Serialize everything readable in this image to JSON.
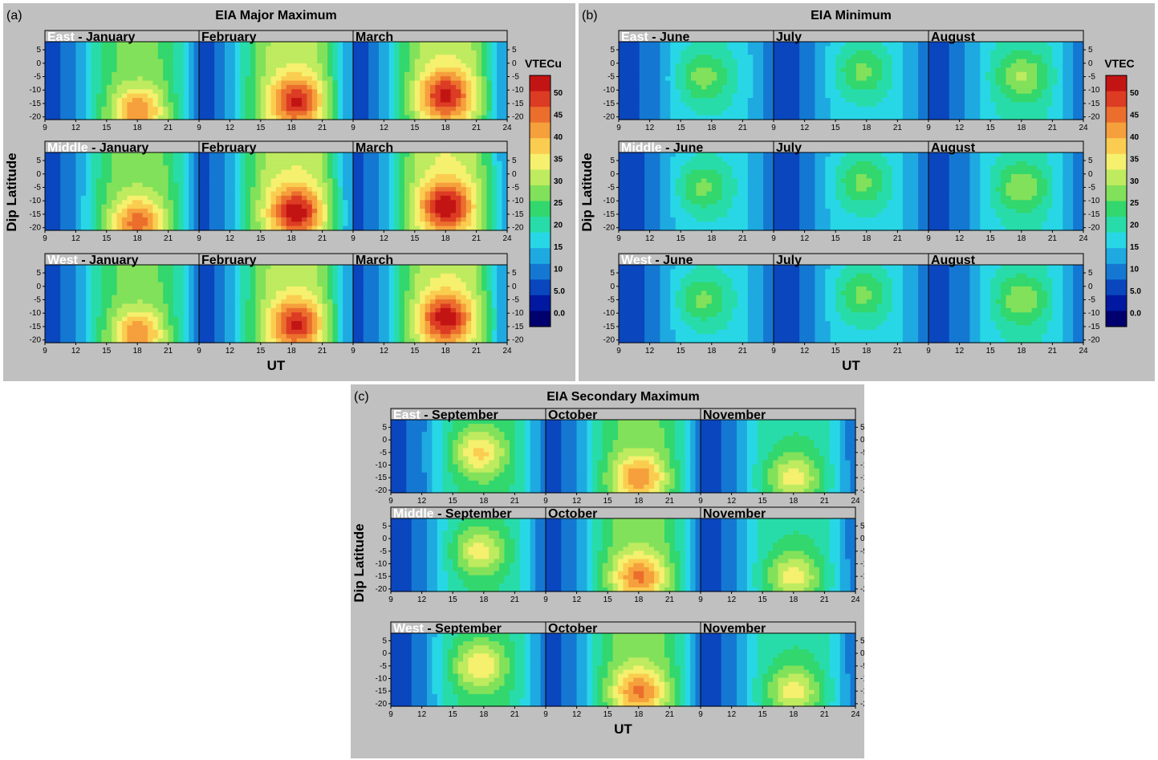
{
  "chart_data": [
    {
      "type": "heatmap",
      "id": "a",
      "panel_label": "(a)",
      "title": "EIA Major Maximum",
      "xlabel": "UT",
      "ylabel": "Dip Latitude",
      "colorbar_title": "VTECu",
      "regions": [
        "East",
        "Middle",
        "West"
      ],
      "months": [
        "January",
        "February",
        "March"
      ],
      "peak_tec": [
        [
          44,
          52,
          53
        ],
        [
          46,
          54,
          55
        ],
        [
          44,
          52,
          54
        ]
      ],
      "peak_ut": [
        18,
        18.5,
        18
      ],
      "peak_lat": [
        -18,
        -14,
        -12
      ]
    },
    {
      "type": "heatmap",
      "id": "b",
      "panel_label": "(b)",
      "title": "EIA Minimum",
      "xlabel": "UT",
      "ylabel": "Dip Latitude",
      "colorbar_title": "VTEC",
      "regions": [
        "East",
        "Middle",
        "West"
      ],
      "months": [
        "June",
        "July",
        "August"
      ],
      "peak_tec": [
        [
          28,
          27,
          30
        ],
        [
          27,
          27,
          29
        ],
        [
          27,
          27,
          29
        ]
      ],
      "peak_ut": [
        17,
        17.5,
        18
      ],
      "peak_lat": [
        -5,
        -3,
        -5
      ]
    },
    {
      "type": "heatmap",
      "id": "c",
      "panel_label": "(c)",
      "title": "EIA Secondary Maximum",
      "xlabel": "UT",
      "ylabel": "Dip Latitude",
      "colorbar_title": "VTECu",
      "regions": [
        "East",
        "Middle",
        "West"
      ],
      "months": [
        "September",
        "October",
        "November"
      ],
      "peak_tec": [
        [
          38,
          44,
          35
        ],
        [
          35,
          45,
          35
        ],
        [
          37,
          45,
          35
        ]
      ],
      "peak_ut": [
        17.5,
        18,
        18
      ],
      "peak_lat": [
        -5,
        -15,
        -15
      ]
    }
  ],
  "shared_axes": {
    "x_ticks": [
      9,
      12,
      15,
      18,
      21,
      24
    ],
    "xlim": [
      9,
      24
    ],
    "y_ticks": [
      5,
      0,
      -5,
      -10,
      -15,
      -20
    ],
    "ylim": [
      -21,
      8
    ]
  },
  "colorbar": {
    "ticks": [
      "0.0",
      "5.0",
      "10",
      "15",
      "20",
      "25",
      "30",
      "35",
      "40",
      "45",
      "50"
    ],
    "range": [
      -3,
      54
    ]
  }
}
